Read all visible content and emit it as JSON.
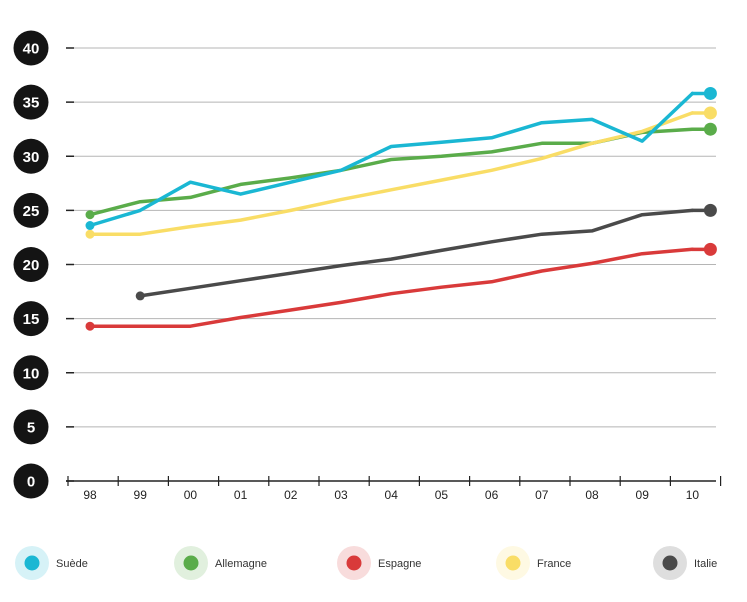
{
  "chart_data": {
    "type": "line",
    "title": "",
    "xlabel": "",
    "ylabel": "",
    "ylim": [
      0,
      40
    ],
    "yticks": [
      "0",
      "5",
      "10",
      "15",
      "20",
      "25",
      "30",
      "35",
      "40"
    ],
    "categories": [
      "98",
      "99",
      "00",
      "01",
      "02",
      "03",
      "04",
      "05",
      "06",
      "07",
      "08",
      "09",
      "10"
    ],
    "grid": "horizontal",
    "legend_position": "bottom",
    "series": [
      {
        "name": "Suède",
        "color": "#1ab7d3",
        "values": [
          23.6,
          25.0,
          27.6,
          26.5,
          27.6,
          28.7,
          30.9,
          31.3,
          31.7,
          33.1,
          33.4,
          31.4,
          35.8
        ]
      },
      {
        "name": "Allemagne",
        "color": "#5aac4a",
        "values": [
          24.6,
          25.8,
          26.2,
          27.4,
          28.0,
          28.7,
          29.7,
          30.0,
          30.4,
          31.2,
          31.2,
          32.2,
          32.5
        ]
      },
      {
        "name": "Espagne",
        "color": "#d93a3a",
        "values": [
          14.3,
          14.3,
          14.3,
          15.1,
          15.8,
          16.5,
          17.3,
          17.9,
          18.4,
          19.4,
          20.1,
          21.0,
          21.4
        ]
      },
      {
        "name": "France",
        "color": "#f9dd66",
        "values": [
          22.8,
          22.8,
          23.5,
          24.1,
          25.0,
          26.0,
          26.9,
          27.8,
          28.7,
          29.8,
          31.2,
          32.3,
          34.0
        ]
      },
      {
        "name": "Italie",
        "color": "#4a4a4a",
        "values": [
          null,
          17.1,
          17.8,
          18.5,
          19.2,
          19.9,
          20.5,
          21.3,
          22.1,
          22.8,
          23.1,
          24.6,
          25.0
        ]
      }
    ]
  }
}
